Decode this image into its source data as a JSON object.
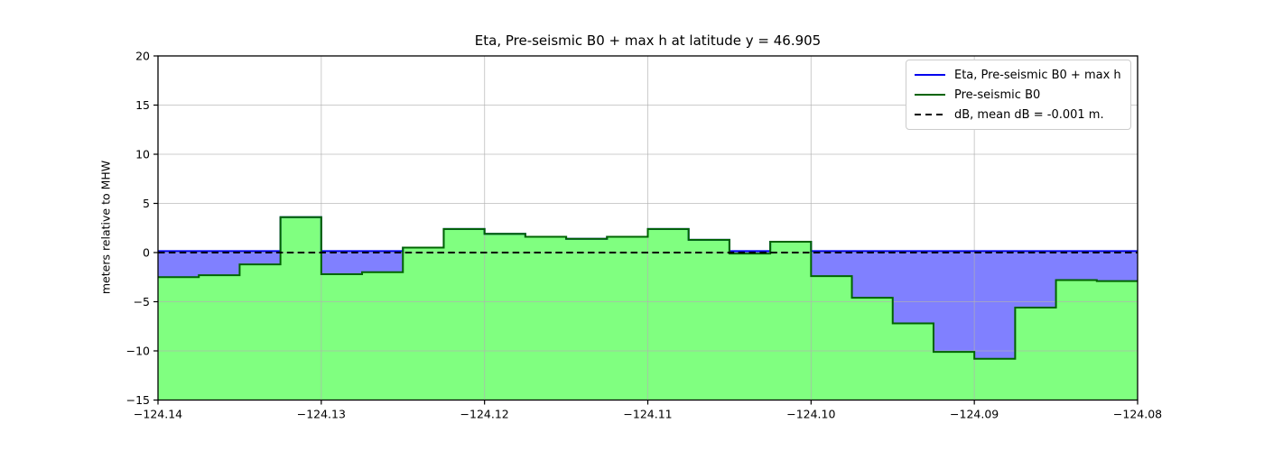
{
  "title": "Eta, Pre-seismic B0 + max h at latitude y = 46.905",
  "ylabel": "meters relative to MHW",
  "legend": {
    "position": "upper right",
    "items": [
      {
        "label": "Eta, Pre-seismic B0 + max h",
        "color": "#0000ee",
        "dash": false
      },
      {
        "label": "Pre-seismic B0",
        "color": "#006400",
        "dash": false
      },
      {
        "label": "dB, mean dB = -0.001 m.",
        "color": "#000000",
        "dash": true
      }
    ]
  },
  "chart_data": {
    "type": "area",
    "title": "Eta, Pre-seismic B0 + max h at latitude y = 46.905",
    "xlabel": "",
    "ylabel": "meters relative to MHW",
    "xlim": [
      -124.14,
      -124.08
    ],
    "ylim": [
      -15,
      20
    ],
    "grid": true,
    "xticks": [
      -124.14,
      -124.13,
      -124.12,
      -124.11,
      -124.1,
      -124.09,
      -124.08
    ],
    "xtick_labels": [
      "−124.14",
      "−124.13",
      "−124.12",
      "−124.11",
      "−124.10",
      "−124.09",
      "−124.08"
    ],
    "yticks": [
      20,
      15,
      10,
      5,
      0,
      -5,
      -10,
      -15
    ],
    "ytick_labels": [
      "20",
      "15",
      "10",
      "5",
      "0",
      "−5",
      "−10",
      "−15"
    ],
    "step_x_start": -124.14,
    "step_dx": 0.0025,
    "series": [
      {
        "name": "Pre-seismic B0",
        "type": "step-area",
        "line_color": "#006400",
        "fill_color": "#80ff80",
        "values": [
          -2.5,
          -2.3,
          -1.2,
          3.6,
          -2.2,
          -2.0,
          0.5,
          2.4,
          1.9,
          1.6,
          1.4,
          1.6,
          2.4,
          1.3,
          -0.1,
          1.1,
          -2.4,
          -4.6,
          -7.2,
          -10.1,
          -10.8,
          -5.6,
          -2.8,
          -2.9
        ]
      },
      {
        "name": "Eta, Pre-seismic B0 + max h",
        "type": "step-line",
        "rule": "max(B0, water_level)",
        "water_level": 0.15,
        "line_color": "#0000ee",
        "fill_color": "#8080ff"
      },
      {
        "name": "dB, mean dB = -0.001 m.",
        "type": "hline",
        "y": -0.001,
        "line_color": "#000000",
        "dash": true
      }
    ],
    "grid_color": "#b0b0b0"
  }
}
